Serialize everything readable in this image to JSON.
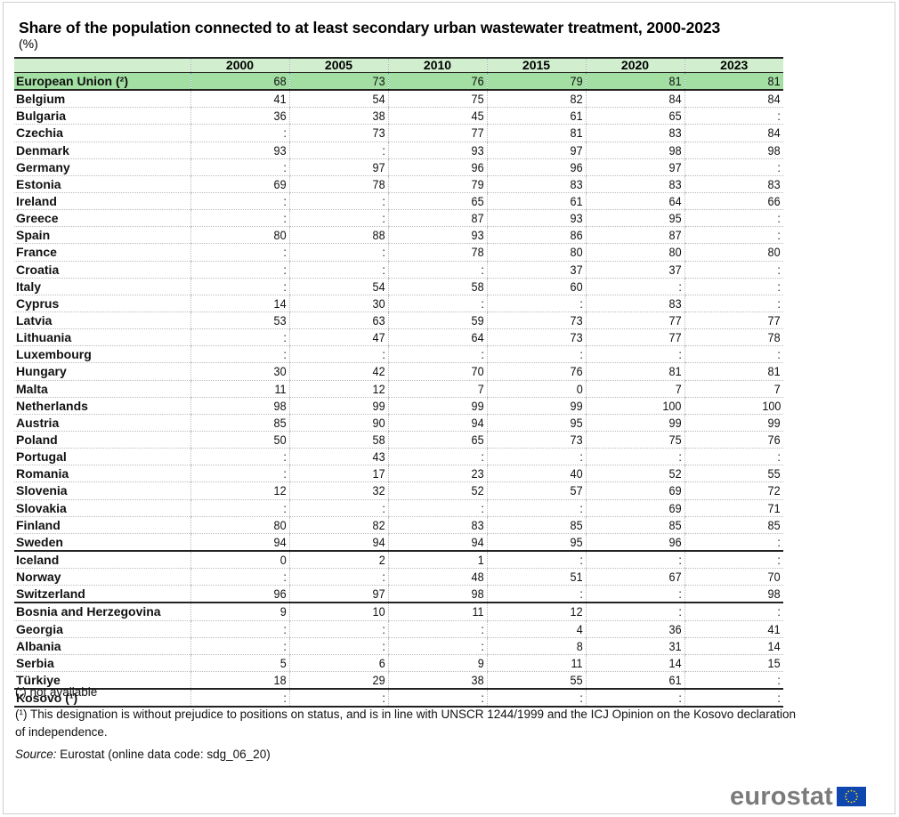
{
  "header": {
    "title": "Share of the population connected to at least secondary urban wastewater treatment, 2000-2023",
    "unit": "(%)"
  },
  "chart_data": {
    "type": "table",
    "title": "Share of the population connected to at least secondary urban wastewater treatment, 2000-2023",
    "unit": "(%)",
    "columns": [
      "",
      "2000",
      "2005",
      "2010",
      "2015",
      "2020",
      "2023"
    ],
    "rows": [
      {
        "label": "European Union (²)",
        "values": [
          "68",
          "73",
          "76",
          "79",
          "81",
          "81"
        ]
      },
      {
        "label": "Belgium",
        "values": [
          "41",
          "54",
          "75",
          "82",
          "84",
          "84"
        ]
      },
      {
        "label": "Bulgaria",
        "values": [
          "36",
          "38",
          "45",
          "61",
          "65",
          ":"
        ]
      },
      {
        "label": "Czechia",
        "values": [
          ":",
          "73",
          "77",
          "81",
          "83",
          "84"
        ]
      },
      {
        "label": "Denmark",
        "values": [
          "93",
          ":",
          "93",
          "97",
          "98",
          "98"
        ]
      },
      {
        "label": "Germany",
        "values": [
          ":",
          "97",
          "96",
          "96",
          "97",
          ":"
        ]
      },
      {
        "label": "Estonia",
        "values": [
          "69",
          "78",
          "79",
          "83",
          "83",
          "83"
        ]
      },
      {
        "label": "Ireland",
        "values": [
          ":",
          ":",
          "65",
          "61",
          "64",
          "66"
        ]
      },
      {
        "label": "Greece",
        "values": [
          ":",
          ":",
          "87",
          "93",
          "95",
          ":"
        ]
      },
      {
        "label": "Spain",
        "values": [
          "80",
          "88",
          "93",
          "86",
          "87",
          ":"
        ]
      },
      {
        "label": "France",
        "values": [
          ":",
          ":",
          "78",
          "80",
          "80",
          "80"
        ]
      },
      {
        "label": "Croatia",
        "values": [
          ":",
          ":",
          ":",
          "37",
          "37",
          ":"
        ]
      },
      {
        "label": "Italy",
        "values": [
          ":",
          "54",
          "58",
          "60",
          ":",
          ":"
        ]
      },
      {
        "label": "Cyprus",
        "values": [
          "14",
          "30",
          ":",
          ":",
          "83",
          ":"
        ]
      },
      {
        "label": "Latvia",
        "values": [
          "53",
          "63",
          "59",
          "73",
          "77",
          "77"
        ]
      },
      {
        "label": "Lithuania",
        "values": [
          ":",
          "47",
          "64",
          "73",
          "77",
          "78"
        ]
      },
      {
        "label": "Luxembourg",
        "values": [
          ":",
          ":",
          ":",
          ":",
          ":",
          ":"
        ]
      },
      {
        "label": "Hungary",
        "values": [
          "30",
          "42",
          "70",
          "76",
          "81",
          "81"
        ]
      },
      {
        "label": "Malta",
        "values": [
          "11",
          "12",
          "7",
          "0",
          "7",
          "7"
        ]
      },
      {
        "label": "Netherlands",
        "values": [
          "98",
          "99",
          "99",
          "99",
          "100",
          "100"
        ]
      },
      {
        "label": "Austria",
        "values": [
          "85",
          "90",
          "94",
          "95",
          "99",
          "99"
        ]
      },
      {
        "label": "Poland",
        "values": [
          "50",
          "58",
          "65",
          "73",
          "75",
          "76"
        ]
      },
      {
        "label": "Portugal",
        "values": [
          ":",
          "43",
          ":",
          ":",
          ":",
          ":"
        ]
      },
      {
        "label": "Romania",
        "values": [
          ":",
          "17",
          "23",
          "40",
          "52",
          "55"
        ]
      },
      {
        "label": "Slovenia",
        "values": [
          "12",
          "32",
          "52",
          "57",
          "69",
          "72"
        ]
      },
      {
        "label": "Slovakia",
        "values": [
          ":",
          ":",
          ":",
          ":",
          "69",
          "71"
        ]
      },
      {
        "label": "Finland",
        "values": [
          "80",
          "82",
          "83",
          "85",
          "85",
          "85"
        ]
      },
      {
        "label": "Sweden",
        "values": [
          "94",
          "94",
          "94",
          "95",
          "96",
          ":"
        ]
      },
      {
        "label": "Iceland",
        "values": [
          "0",
          "2",
          "1",
          ":",
          ":",
          ":"
        ]
      },
      {
        "label": "Norway",
        "values": [
          ":",
          ":",
          "48",
          "51",
          "67",
          "70"
        ]
      },
      {
        "label": "Switzerland",
        "values": [
          "96",
          "97",
          "98",
          ":",
          ":",
          "98"
        ]
      },
      {
        "label": "Bosnia and Herzegovina",
        "values": [
          "9",
          "10",
          "11",
          "12",
          ":",
          ":"
        ]
      },
      {
        "label": "Georgia",
        "values": [
          ":",
          ":",
          ":",
          "4",
          "36",
          "41"
        ]
      },
      {
        "label": "Albania",
        "values": [
          ":",
          ":",
          ":",
          "8",
          "31",
          "14"
        ]
      },
      {
        "label": "Serbia",
        "values": [
          "5",
          "6",
          "9",
          "11",
          "14",
          "15"
        ]
      },
      {
        "label": "Türkiye",
        "values": [
          "18",
          "29",
          "38",
          "55",
          "61",
          ":"
        ]
      },
      {
        "label": "Kosovo (¹)",
        "values": [
          ":",
          ":",
          ":",
          ":",
          ":",
          ":"
        ]
      }
    ],
    "group_starts": [
      "Belgium",
      "Iceland",
      "Bosnia and Herzegovina",
      "Kosovo (¹)"
    ],
    "highlight_row": "European Union (²)"
  },
  "notes": {
    "not_available": "(:) not available",
    "footnote_1": "(¹) This designation is without prejudice to positions on status, and is in line with UNSCR 1244/1999 and the ICJ Opinion on the Kosovo declaration of independence.",
    "source_label": "Source:",
    "source_text": " Eurostat (online data code: sdg_06_20)"
  },
  "logo": {
    "text": "eurostat",
    "flag_icon": "eu-flag-icon",
    "colors": {
      "text": "#7b7b7b",
      "flag": "#0f47af",
      "stars": "#ffdd00"
    }
  },
  "colors": {
    "header_bg": "#d1efcf",
    "highlight_bg": "#a3dfa2"
  }
}
